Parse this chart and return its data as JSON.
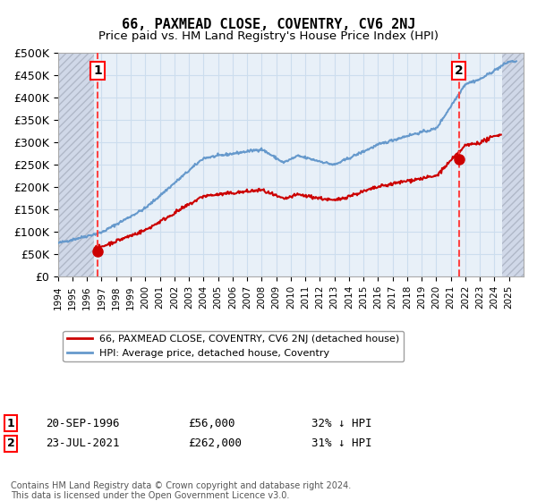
{
  "title": "66, PAXMEAD CLOSE, COVENTRY, CV6 2NJ",
  "subtitle": "Price paid vs. HM Land Registry's House Price Index (HPI)",
  "ylim": [
    0,
    500000
  ],
  "yticks": [
    0,
    50000,
    100000,
    150000,
    200000,
    250000,
    300000,
    350000,
    400000,
    450000,
    500000
  ],
  "ytick_labels": [
    "£0",
    "£50K",
    "£100K",
    "£150K",
    "£200K",
    "£250K",
    "£300K",
    "£350K",
    "£400K",
    "£450K",
    "£500K"
  ],
  "xlim_start": 1994.0,
  "xlim_end": 2026.0,
  "purchase1_date": 1996.72,
  "purchase1_price": 56000,
  "purchase1_label": "1",
  "purchase2_date": 2021.55,
  "purchase2_price": 262000,
  "purchase2_label": "2",
  "hpi_line_color": "#6699cc",
  "price_line_color": "#cc0000",
  "dashed_line_color": "#ff4444",
  "marker_color": "#cc0000",
  "grid_color": "#ccddee",
  "bg_color": "#e8f0f8",
  "legend_label1": "66, PAXMEAD CLOSE, COVENTRY, CV6 2NJ (detached house)",
  "legend_label2": "HPI: Average price, detached house, Coventry",
  "annotation1_date": "20-SEP-1996",
  "annotation1_price": "£56,000",
  "annotation1_hpi": "32% ↓ HPI",
  "annotation2_date": "23-JUL-2021",
  "annotation2_price": "£262,000",
  "annotation2_hpi": "31% ↓ HPI",
  "footer": "Contains HM Land Registry data © Crown copyright and database right 2024.\nThis data is licensed under the Open Government Licence v3.0."
}
